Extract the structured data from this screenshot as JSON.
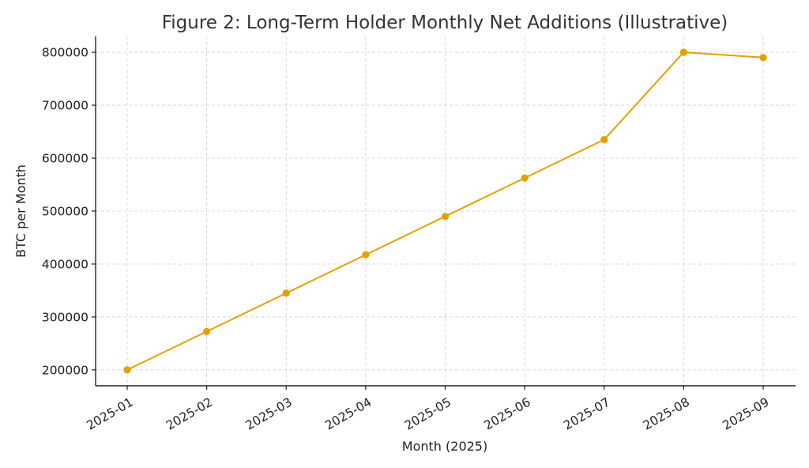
{
  "chart_data": {
    "type": "line",
    "title": "Figure 2: Long-Term Holder Monthly Net Additions (Illustrative)",
    "xlabel": "Month (2025)",
    "ylabel": "BTC per Month",
    "categories": [
      "2025-01",
      "2025-02",
      "2025-03",
      "2025-04",
      "2025-05",
      "2025-06",
      "2025-07",
      "2025-08",
      "2025-09"
    ],
    "series": [
      {
        "values": [
          200000,
          272500,
          345000,
          417500,
          490000,
          562500,
          635000,
          800000,
          790000
        ],
        "color": "#E69F00"
      }
    ],
    "yticks": [
      "200000",
      "300000",
      "400000",
      "500000",
      "600000",
      "700000",
      "800000"
    ],
    "ylim": [
      170000,
      830000
    ],
    "grid": true,
    "legend": "none",
    "x_tick_rotation": "30 degrees"
  }
}
